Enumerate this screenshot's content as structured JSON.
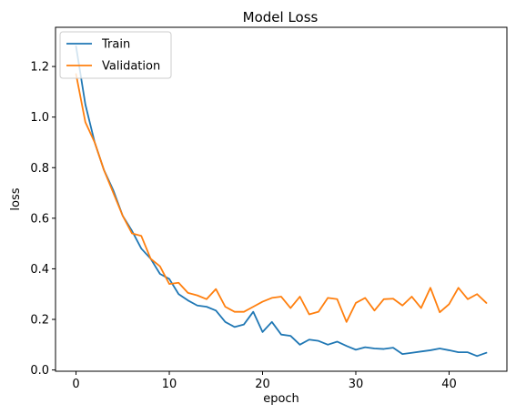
{
  "chart_data": {
    "type": "line",
    "title": "Model Loss",
    "xlabel": "epoch",
    "ylabel": "loss",
    "xlim": [
      -2.2,
      46.2
    ],
    "ylim": [
      -0.005,
      1.355
    ],
    "xticks": [
      0,
      10,
      20,
      30,
      40
    ],
    "yticks": [
      0.0,
      0.2,
      0.4,
      0.6,
      0.8,
      1.0,
      1.2
    ],
    "grid": false,
    "legend_position": "top-left",
    "x": [
      0,
      1,
      2,
      3,
      4,
      5,
      6,
      7,
      8,
      9,
      10,
      11,
      12,
      13,
      14,
      15,
      16,
      17,
      18,
      19,
      20,
      21,
      22,
      23,
      24,
      25,
      26,
      27,
      28,
      29,
      30,
      31,
      32,
      33,
      34,
      35,
      36,
      37,
      38,
      39,
      40,
      41,
      42,
      43,
      44
    ],
    "series": [
      {
        "name": "Train",
        "color": "#1f77b4",
        "values": [
          1.28,
          1.05,
          0.9,
          0.79,
          0.71,
          0.61,
          0.55,
          0.48,
          0.44,
          0.38,
          0.36,
          0.3,
          0.275,
          0.255,
          0.25,
          0.235,
          0.19,
          0.17,
          0.18,
          0.23,
          0.15,
          0.19,
          0.14,
          0.135,
          0.1,
          0.12,
          0.115,
          0.1,
          0.112,
          0.095,
          0.08,
          0.09,
          0.085,
          0.083,
          0.088,
          0.063,
          0.068,
          0.073,
          0.078,
          0.085,
          0.078,
          0.07,
          0.07,
          0.055,
          0.068
        ]
      },
      {
        "name": "Validation",
        "color": "#ff7f0e",
        "values": [
          1.17,
          0.98,
          0.9,
          0.79,
          0.7,
          0.61,
          0.54,
          0.53,
          0.44,
          0.41,
          0.34,
          0.345,
          0.305,
          0.295,
          0.28,
          0.32,
          0.25,
          0.23,
          0.23,
          0.25,
          0.27,
          0.285,
          0.29,
          0.245,
          0.29,
          0.22,
          0.23,
          0.285,
          0.28,
          0.19,
          0.265,
          0.285,
          0.235,
          0.28,
          0.282,
          0.255,
          0.29,
          0.245,
          0.325,
          0.228,
          0.26,
          0.325,
          0.28,
          0.3,
          0.265
        ]
      }
    ]
  }
}
